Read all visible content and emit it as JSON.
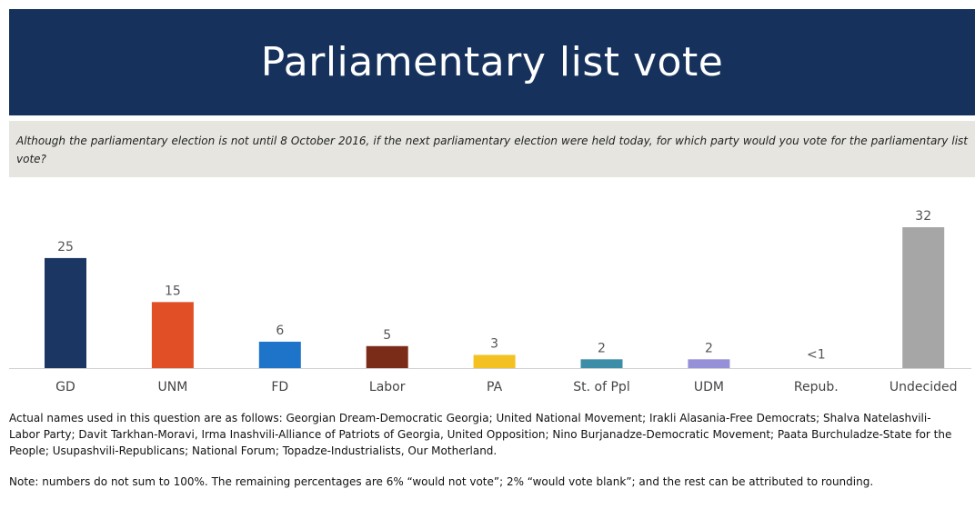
{
  "header": {
    "title": "Parliamentary list vote"
  },
  "question": {
    "text": "Although the parliamentary election is not until 8 October 2016, if the next parliamentary election were held today, for which party would you vote for the parliamentary list vote?"
  },
  "chart_data": {
    "type": "bar",
    "categories": [
      "GD",
      "UNM",
      "FD",
      "Labor",
      "PA",
      "St. of Ppl",
      "UDM",
      "Repub.",
      "Undecided"
    ],
    "values": [
      25,
      15,
      6,
      5,
      3,
      2,
      2,
      0.5,
      32
    ],
    "value_labels": [
      "25",
      "15",
      "6",
      "5",
      "3",
      "2",
      "2",
      "<1",
      "32"
    ],
    "colors": [
      "#1b3663",
      "#e04f26",
      "#1d74c9",
      "#7a2c18",
      "#f4c122",
      "#3c8ea8",
      "#9590d8",
      "#c0c0c0",
      "#a6a6a6"
    ],
    "title": "",
    "xlabel": "",
    "ylabel": "",
    "ylim": [
      0,
      32
    ],
    "grid": false,
    "legend": "none"
  },
  "notes": {
    "names": "Actual names used in this question are as follows:  Georgian Dream-Democratic Georgia; United National Movement; Irakli Alasania-Free Democrats; Shalva Natelashvili-Labor Party; Davit Tarkhan-Moravi, Irma Inashvili-Alliance of Patriots of Georgia, United Opposition; Nino Burjanadze-Democratic Movement; Paata Burchuladze-State for the People; Usupashvili-Republicans; National Forum; Topadze-Industrialists, Our Motherland.",
    "sum": "Note: numbers do not sum to 100%. The remaining percentages are 6% “would not vote”; 2% “would vote blank”; and the rest can be attributed to rounding."
  }
}
